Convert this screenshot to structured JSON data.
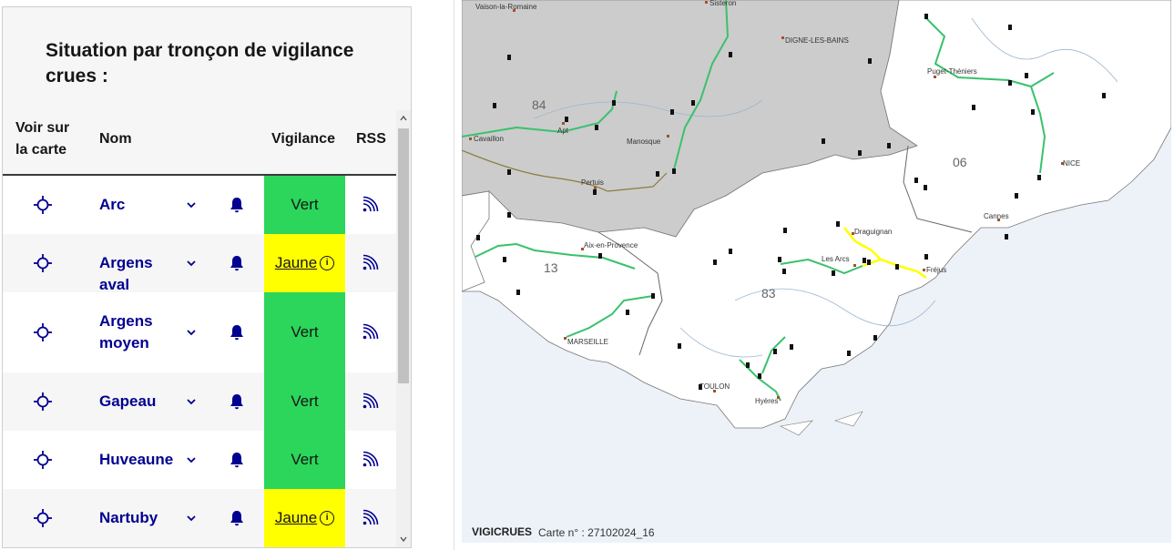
{
  "panel": {
    "title": "Situation par tronçon de vigilance crues :",
    "headers": {
      "locate": "Voir sur la carte",
      "name": "Nom",
      "vigilance": "Vigilance",
      "rss": "RSS"
    }
  },
  "rows": [
    {
      "name": "Arc",
      "vigilance": "Vert",
      "level": "vert"
    },
    {
      "name": "Argens aval",
      "vigilance": "Jaune",
      "level": "jaune"
    },
    {
      "name": "Argens moyen",
      "vigilance": "Vert",
      "level": "vert"
    },
    {
      "name": "Gapeau",
      "vigilance": "Vert",
      "level": "vert"
    },
    {
      "name": "Huveaune",
      "vigilance": "Vert",
      "level": "vert"
    },
    {
      "name": "Nartuby",
      "vigilance": "Jaune",
      "level": "jaune"
    }
  ],
  "colors": {
    "vert": "#2bd65b",
    "jaune": "#ffff00",
    "link": "#000091"
  },
  "map": {
    "brand": "VIGICRUES",
    "card": "Carte n° : 27102024_16",
    "departments": [
      "84",
      "13",
      "83",
      "06"
    ],
    "cities": {
      "vaison": "Vaison-la-Romaine",
      "sisteron": "Sisteron",
      "digne": "DIGNE-LES-BAINS",
      "cavaillon": "Cavaillon",
      "apt": "Apt",
      "manosque": "Manosque",
      "pertuis": "Pertuis",
      "puget": "Puget-Théniers",
      "nice": "NICE",
      "cannes": "Cannes",
      "draguignan": "Draguignan",
      "aix": "Aix-en-Provence",
      "lesarcs": "Les Arcs",
      "frejus": "Fréjus",
      "marseille": "MARSEILLE",
      "toulon": "TOULON",
      "hyeres": "Hyères"
    }
  },
  "icons": [
    "crosshair-icon",
    "chevron-down-icon",
    "bell-icon",
    "rss-icon",
    "info-icon"
  ]
}
